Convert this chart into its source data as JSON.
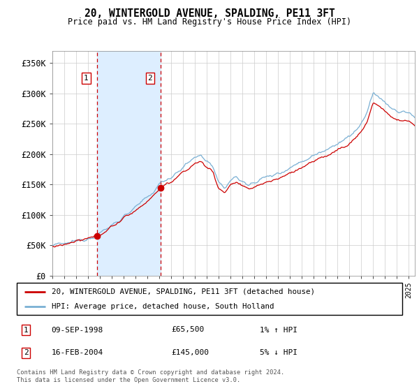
{
  "title": "20, WINTERGOLD AVENUE, SPALDING, PE11 3FT",
  "subtitle": "Price paid vs. HM Land Registry's House Price Index (HPI)",
  "legend_line1": "20, WINTERGOLD AVENUE, SPALDING, PE11 3FT (detached house)",
  "legend_line2": "HPI: Average price, detached house, South Holland",
  "transaction1_text": "09-SEP-1998",
  "transaction1_amount": "£65,500",
  "transaction1_hpi": "1% ↑ HPI",
  "transaction2_text": "16-FEB-2004",
  "transaction2_amount": "£145,000",
  "transaction2_hpi": "5% ↓ HPI",
  "footer": "Contains HM Land Registry data © Crown copyright and database right 2024.\nThis data is licensed under the Open Government Licence v3.0.",
  "hpi_line_color": "#7ab0d4",
  "price_line_color": "#cc0000",
  "transaction_marker_color": "#cc0000",
  "shading_color": "#ddeeff",
  "vline_color": "#cc0000",
  "ylim": [
    0,
    370000
  ],
  "yticks": [
    0,
    50000,
    100000,
    150000,
    200000,
    250000,
    300000,
    350000
  ],
  "ytick_labels": [
    "£0",
    "£50K",
    "£100K",
    "£150K",
    "£200K",
    "£250K",
    "£300K",
    "£350K"
  ],
  "transaction1_price": 65500,
  "transaction2_price": 145000,
  "t1_year": 1998.75,
  "t2_year": 2004.125,
  "xlim_left": 1995.0,
  "xlim_right": 2025.5
}
